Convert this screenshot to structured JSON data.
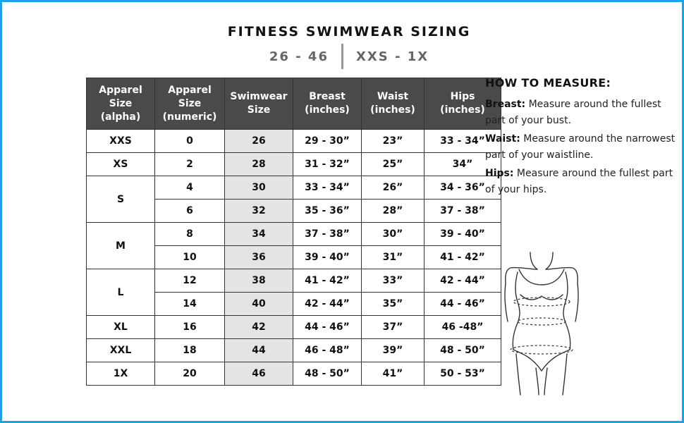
{
  "title": "FITNESS SWIMWEAR SIZING",
  "subtitle": {
    "left": "26 - 46",
    "right": "XXS - 1X"
  },
  "table": {
    "headers": [
      "Apparel Size (alpha)",
      "Apparel Size (numeric)",
      "Swimwear Size",
      "Breast (inches)",
      "Waist (inches)",
      "Hips (inches)"
    ],
    "header_lines": [
      [
        "Apparel",
        "Size",
        "(alpha)"
      ],
      [
        "Apparel",
        "Size",
        "(numeric)"
      ],
      [
        "Swimwear",
        "Size"
      ],
      [
        "Breast",
        "(inches)"
      ],
      [
        "Waist",
        "(inches)"
      ],
      [
        "Hips",
        "(inches)"
      ]
    ],
    "groups": [
      {
        "alpha": "XXS",
        "rows": [
          {
            "numeric": "0",
            "swim": "26",
            "breast": "29 - 30”",
            "waist": "23”",
            "hips": "33 - 34”"
          }
        ]
      },
      {
        "alpha": "XS",
        "rows": [
          {
            "numeric": "2",
            "swim": "28",
            "breast": "31 - 32”",
            "waist": "25”",
            "hips": "34”"
          }
        ]
      },
      {
        "alpha": "S",
        "rows": [
          {
            "numeric": "4",
            "swim": "30",
            "breast": "33 - 34”",
            "waist": "26”",
            "hips": "34 - 36”"
          },
          {
            "numeric": "6",
            "swim": "32",
            "breast": "35 - 36”",
            "waist": "28”",
            "hips": "37 - 38”"
          }
        ]
      },
      {
        "alpha": "M",
        "rows": [
          {
            "numeric": "8",
            "swim": "34",
            "breast": "37 - 38”",
            "waist": "30”",
            "hips": "39 - 40”"
          },
          {
            "numeric": "10",
            "swim": "36",
            "breast": "39 - 40”",
            "waist": "31”",
            "hips": "41 - 42”"
          }
        ]
      },
      {
        "alpha": "L",
        "rows": [
          {
            "numeric": "12",
            "swim": "38",
            "breast": "41 - 42”",
            "waist": "33”",
            "hips": "42 - 44”"
          },
          {
            "numeric": "14",
            "swim": "40",
            "breast": "42 - 44”",
            "waist": "35”",
            "hips": "44 - 46”"
          }
        ]
      },
      {
        "alpha": "XL",
        "rows": [
          {
            "numeric": "16",
            "swim": "42",
            "breast": "44 - 46”",
            "waist": "37”",
            "hips": "46 -48”"
          }
        ]
      },
      {
        "alpha": "XXL",
        "rows": [
          {
            "numeric": "18",
            "swim": "44",
            "breast": "46 - 48”",
            "waist": "39”",
            "hips": "48 - 50”"
          }
        ]
      },
      {
        "alpha": "1X",
        "rows": [
          {
            "numeric": "20",
            "swim": "46",
            "breast": "48 - 50”",
            "waist": "41”",
            "hips": "50 - 53”"
          }
        ]
      }
    ]
  },
  "how_to": {
    "heading": "HOW TO MEASURE:",
    "items": [
      {
        "label": "Breast:",
        "text": " Measure around the fullest part of your bust."
      },
      {
        "label": "Waist:",
        "text": " Measure around the narrowest part of your waistline."
      },
      {
        "label": "Hips:",
        "text": " Measure around the fullest part of your hips."
      }
    ]
  },
  "icons": {
    "figure": "body-measurement-illustration-icon"
  },
  "colors": {
    "border": "#1aa3e8",
    "header_bg": "#4a4a4a",
    "swim_col_bg": "#e4e4e4",
    "subtitle": "#666666"
  }
}
